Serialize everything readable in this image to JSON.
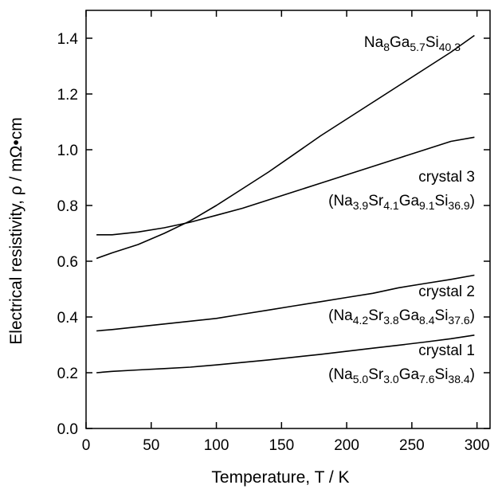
{
  "chart_data": {
    "type": "line",
    "xlabel": "Temperature, T / K",
    "ylabel": "Electrical resistivity, ρ / mΩ•cm",
    "xlim": [
      0,
      310
    ],
    "ylim": [
      0,
      1.5
    ],
    "xticks": [
      0,
      50,
      100,
      150,
      200,
      250,
      300
    ],
    "yticks": [
      0.0,
      0.2,
      0.4,
      0.6,
      0.8,
      1.0,
      1.2,
      1.4
    ],
    "xtick_labels": [
      "0",
      "50",
      "100",
      "150",
      "200",
      "250",
      "300"
    ],
    "ytick_labels": [
      "0.0",
      "0.2",
      "0.4",
      "0.6",
      "0.8",
      "1.0",
      "1.2",
      "1.4"
    ],
    "grid": false,
    "series": [
      {
        "name": "Na8Ga5.7Si40.3",
        "x": [
          8,
          20,
          40,
          60,
          80,
          100,
          120,
          140,
          160,
          180,
          200,
          220,
          240,
          260,
          280,
          298
        ],
        "y": [
          0.61,
          0.63,
          0.66,
          0.7,
          0.745,
          0.8,
          0.86,
          0.92,
          0.985,
          1.05,
          1.11,
          1.17,
          1.23,
          1.29,
          1.35,
          1.41
        ]
      },
      {
        "name": "crystal 3",
        "x": [
          8,
          20,
          40,
          60,
          80,
          100,
          120,
          140,
          160,
          180,
          200,
          220,
          240,
          260,
          280,
          298
        ],
        "y": [
          0.695,
          0.695,
          0.705,
          0.72,
          0.74,
          0.765,
          0.79,
          0.82,
          0.85,
          0.88,
          0.91,
          0.94,
          0.97,
          1.0,
          1.03,
          1.045
        ]
      },
      {
        "name": "crystal 2",
        "x": [
          8,
          20,
          40,
          60,
          80,
          100,
          120,
          140,
          160,
          180,
          200,
          220,
          240,
          260,
          280,
          298
        ],
        "y": [
          0.35,
          0.355,
          0.365,
          0.375,
          0.385,
          0.395,
          0.41,
          0.425,
          0.44,
          0.455,
          0.47,
          0.485,
          0.505,
          0.52,
          0.535,
          0.55
        ]
      },
      {
        "name": "crystal 1",
        "x": [
          8,
          20,
          40,
          60,
          80,
          100,
          120,
          140,
          160,
          180,
          200,
          220,
          240,
          260,
          280,
          298
        ],
        "y": [
          0.2,
          0.205,
          0.21,
          0.215,
          0.22,
          0.228,
          0.237,
          0.246,
          0.256,
          0.266,
          0.277,
          0.288,
          0.299,
          0.31,
          0.322,
          0.335
        ]
      }
    ],
    "annotations": [
      {
        "id": "na8",
        "lines": [
          [
            {
              "t": "Na"
            },
            {
              "t": "8",
              "sub": true
            },
            {
              "t": "Ga"
            },
            {
              "t": "5.7",
              "sub": true
            },
            {
              "t": "Si"
            },
            {
              "t": "40.3",
              "sub": true
            }
          ]
        ]
      },
      {
        "id": "crystal3",
        "lines": [
          [
            {
              "t": "crystal 3"
            }
          ],
          [
            {
              "t": "(Na"
            },
            {
              "t": "3.9",
              "sub": true
            },
            {
              "t": "Sr"
            },
            {
              "t": "4.1",
              "sub": true
            },
            {
              "t": "Ga"
            },
            {
              "t": "9.1",
              "sub": true
            },
            {
              "t": "Si"
            },
            {
              "t": "36.9",
              "sub": true
            },
            {
              "t": ")"
            }
          ]
        ]
      },
      {
        "id": "crystal2",
        "lines": [
          [
            {
              "t": "crystal 2"
            }
          ],
          [
            {
              "t": "(Na"
            },
            {
              "t": "4.2",
              "sub": true
            },
            {
              "t": "Sr"
            },
            {
              "t": "3.8",
              "sub": true
            },
            {
              "t": "Ga"
            },
            {
              "t": "8.4",
              "sub": true
            },
            {
              "t": "Si"
            },
            {
              "t": "37.6",
              "sub": true
            },
            {
              "t": ")"
            }
          ]
        ]
      },
      {
        "id": "crystal1",
        "lines": [
          [
            {
              "t": "crystal 1"
            }
          ],
          [
            {
              "t": "(Na"
            },
            {
              "t": "5.0",
              "sub": true
            },
            {
              "t": "Sr"
            },
            {
              "t": "3.0",
              "sub": true
            },
            {
              "t": "Ga"
            },
            {
              "t": "7.6",
              "sub": true
            },
            {
              "t": "Si"
            },
            {
              "t": "38.4",
              "sub": true
            },
            {
              "t": ")"
            }
          ]
        ]
      }
    ]
  }
}
